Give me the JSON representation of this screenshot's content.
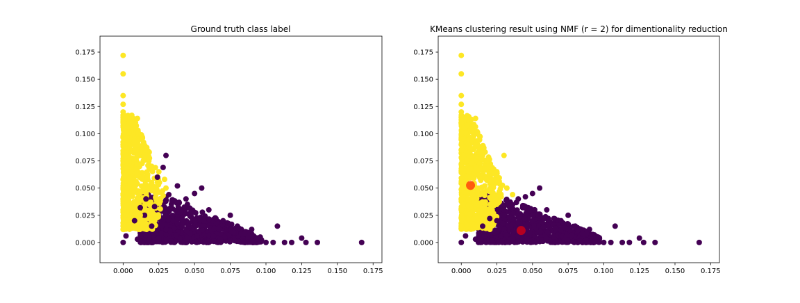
{
  "chart_data": [
    {
      "type": "scatter",
      "title": "Ground truth class label",
      "xlabel": "",
      "ylabel": "",
      "xlim": [
        -0.0162,
        0.1812
      ],
      "ylim": [
        -0.0186,
        0.1897
      ],
      "xticks": [
        0.0,
        0.025,
        0.05,
        0.075,
        0.1,
        0.125,
        0.15,
        0.175
      ],
      "xtick_labels": [
        "0.000",
        "0.025",
        "0.050",
        "0.075",
        "0.100",
        "0.125",
        "0.150",
        "0.175"
      ],
      "yticks": [
        0.0,
        0.025,
        0.05,
        0.075,
        0.1,
        0.125,
        0.15,
        0.175
      ],
      "ytick_labels": [
        "0.000",
        "0.025",
        "0.050",
        "0.075",
        "0.100",
        "0.125",
        "0.150",
        "0.175"
      ],
      "grid": false,
      "colormap": {
        "class_0": "#440154",
        "class_1": "#fde725"
      },
      "series": [
        {
          "color": "#440154",
          "points": [
            [
              0.0,
              0.0
            ],
            [
              0.002,
              0.006
            ],
            [
              0.01,
              0.003
            ],
            [
              0.018,
              0.002
            ],
            [
              0.025,
              0.004
            ],
            [
              0.03,
              0.012
            ],
            [
              0.035,
              0.02
            ],
            [
              0.04,
              0.028
            ],
            [
              0.045,
              0.035
            ],
            [
              0.05,
              0.045
            ],
            [
              0.055,
              0.05
            ],
            [
              0.03,
              0.08
            ],
            [
              0.024,
              0.06
            ],
            [
              0.028,
              0.069
            ],
            [
              0.032,
              0.044
            ],
            [
              0.038,
              0.052
            ],
            [
              0.044,
              0.04
            ],
            [
              0.06,
              0.03
            ],
            [
              0.065,
              0.022
            ],
            [
              0.07,
              0.02
            ],
            [
              0.075,
              0.025
            ],
            [
              0.08,
              0.015
            ],
            [
              0.085,
              0.008
            ],
            [
              0.09,
              0.012
            ],
            [
              0.096,
              0.005
            ],
            [
              0.1,
              0.0
            ],
            [
              0.105,
              0.0
            ],
            [
              0.108,
              0.015
            ],
            [
              0.113,
              0.0
            ],
            [
              0.118,
              0.0
            ],
            [
              0.125,
              0.004
            ],
            [
              0.128,
              0.0
            ],
            [
              0.136,
              0.0
            ],
            [
              0.167,
              0.0
            ],
            [
              0.02,
              0.015
            ],
            [
              0.015,
              0.025
            ],
            [
              0.022,
              0.033
            ],
            [
              0.016,
              0.04
            ],
            [
              0.012,
              0.032
            ],
            [
              0.008,
              0.02
            ]
          ]
        },
        {
          "color": "#fde725",
          "points": [
            [
              0.0,
              0.172
            ],
            [
              0.0,
              0.155
            ],
            [
              0.0,
              0.135
            ],
            [
              0.0,
              0.127
            ],
            [
              0.0,
              0.12
            ],
            [
              0.0,
              0.11
            ],
            [
              0.001,
              0.1
            ],
            [
              0.0,
              0.09
            ],
            [
              0.002,
              0.08
            ],
            [
              0.004,
              0.075
            ],
            [
              0.005,
              0.065
            ],
            [
              0.003,
              0.05
            ],
            [
              0.0,
              0.04
            ],
            [
              0.0,
              0.03
            ],
            [
              0.0,
              0.015
            ],
            [
              0.0,
              0.012
            ],
            [
              0.004,
              0.101
            ],
            [
              0.01,
              0.114
            ],
            [
              0.008,
              0.093
            ],
            [
              0.01,
              0.09
            ],
            [
              0.012,
              0.083
            ],
            [
              0.015,
              0.08
            ],
            [
              0.018,
              0.075
            ],
            [
              0.02,
              0.07
            ],
            [
              0.025,
              0.065
            ],
            [
              0.029,
              0.058
            ],
            [
              0.03,
              0.05
            ],
            [
              0.028,
              0.043
            ],
            [
              0.023,
              0.04
            ],
            [
              0.02,
              0.055
            ],
            [
              0.017,
              0.06
            ],
            [
              0.014,
              0.05
            ],
            [
              0.01,
              0.04
            ],
            [
              0.007,
              0.03
            ],
            [
              0.012,
              0.025
            ],
            [
              0.016,
              0.03
            ]
          ]
        }
      ]
    },
    {
      "type": "scatter",
      "title": "KMeans clustering result using NMF (r = 2) for dimentionality reduction",
      "xlabel": "",
      "ylabel": "",
      "xlim": [
        -0.0162,
        0.1812
      ],
      "ylim": [
        -0.0186,
        0.1897
      ],
      "xticks": [
        0.0,
        0.025,
        0.05,
        0.075,
        0.1,
        0.125,
        0.15,
        0.175
      ],
      "xtick_labels": [
        "0.000",
        "0.025",
        "0.050",
        "0.075",
        "0.100",
        "0.125",
        "0.150",
        "0.175"
      ],
      "yticks": [
        0.0,
        0.025,
        0.05,
        0.075,
        0.1,
        0.125,
        0.15,
        0.175
      ],
      "ytick_labels": [
        "0.000",
        "0.025",
        "0.050",
        "0.075",
        "0.100",
        "0.125",
        "0.150",
        "0.175"
      ],
      "grid": false,
      "colormap": {
        "cluster_0": "#440154",
        "cluster_1": "#fde725"
      },
      "series": [
        {
          "color": "#440154",
          "points": [
            [
              0.0,
              0.0
            ],
            [
              0.003,
              0.006
            ],
            [
              0.01,
              0.003
            ],
            [
              0.015,
              0.015
            ],
            [
              0.02,
              0.022
            ],
            [
              0.025,
              0.02
            ],
            [
              0.03,
              0.03
            ],
            [
              0.035,
              0.035
            ],
            [
              0.04,
              0.04
            ],
            [
              0.045,
              0.042
            ],
            [
              0.05,
              0.045
            ],
            [
              0.055,
              0.05
            ],
            [
              0.06,
              0.03
            ],
            [
              0.065,
              0.022
            ],
            [
              0.07,
              0.02
            ],
            [
              0.075,
              0.025
            ],
            [
              0.08,
              0.015
            ],
            [
              0.085,
              0.008
            ],
            [
              0.09,
              0.012
            ],
            [
              0.096,
              0.005
            ],
            [
              0.1,
              0.0
            ],
            [
              0.105,
              0.0
            ],
            [
              0.108,
              0.015
            ],
            [
              0.113,
              0.0
            ],
            [
              0.118,
              0.0
            ],
            [
              0.125,
              0.004
            ],
            [
              0.128,
              0.0
            ],
            [
              0.136,
              0.0
            ],
            [
              0.167,
              0.0
            ],
            [
              0.04,
              0.018
            ],
            [
              0.05,
              0.025
            ]
          ]
        },
        {
          "color": "#fde725",
          "points": [
            [
              0.0,
              0.172
            ],
            [
              0.0,
              0.155
            ],
            [
              0.0,
              0.135
            ],
            [
              0.0,
              0.127
            ],
            [
              0.0,
              0.12
            ],
            [
              0.0,
              0.11
            ],
            [
              0.001,
              0.1
            ],
            [
              0.0,
              0.09
            ],
            [
              0.002,
              0.08
            ],
            [
              0.004,
              0.075
            ],
            [
              0.005,
              0.065
            ],
            [
              0.003,
              0.05
            ],
            [
              0.0,
              0.04
            ],
            [
              0.0,
              0.03
            ],
            [
              0.0,
              0.015
            ],
            [
              0.003,
              0.101
            ],
            [
              0.01,
              0.114
            ],
            [
              0.008,
              0.093
            ],
            [
              0.01,
              0.09
            ],
            [
              0.012,
              0.083
            ],
            [
              0.015,
              0.08
            ],
            [
              0.018,
              0.075
            ],
            [
              0.02,
              0.07
            ],
            [
              0.025,
              0.065
            ],
            [
              0.03,
              0.08
            ],
            [
              0.032,
              0.05
            ],
            [
              0.036,
              0.044
            ],
            [
              0.028,
              0.042
            ],
            [
              0.024,
              0.04
            ],
            [
              0.02,
              0.048
            ],
            [
              0.016,
              0.044
            ],
            [
              0.01,
              0.036
            ],
            [
              0.006,
              0.026
            ]
          ]
        }
      ],
      "centroids": {
        "color": "#ff0000",
        "points": [
          [
            0.0065,
            0.0525
          ],
          [
            0.042,
            0.011
          ]
        ]
      }
    }
  ]
}
